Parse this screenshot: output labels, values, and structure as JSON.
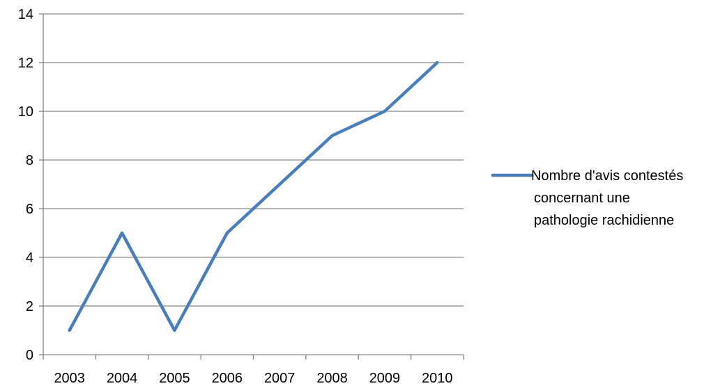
{
  "chart_data": {
    "type": "line",
    "categories": [
      "2003",
      "2004",
      "2005",
      "2006",
      "2007",
      "2008",
      "2009",
      "2010"
    ],
    "series": [
      {
        "name": "Nombre d'avis contestés concernant une pathologie rachidienne",
        "name_lines": [
          "Nombre d'avis contestés",
          "concernant une",
          "pathologie rachidienne"
        ],
        "values": [
          1,
          5,
          1,
          5,
          7,
          9,
          10,
          12
        ],
        "color": "#4a7ebb"
      }
    ],
    "yticks": [
      "0",
      "2",
      "4",
      "6",
      "8",
      "10",
      "12",
      "14"
    ],
    "ylim": [
      0,
      14
    ],
    "grid": true,
    "legend_position": "right"
  }
}
